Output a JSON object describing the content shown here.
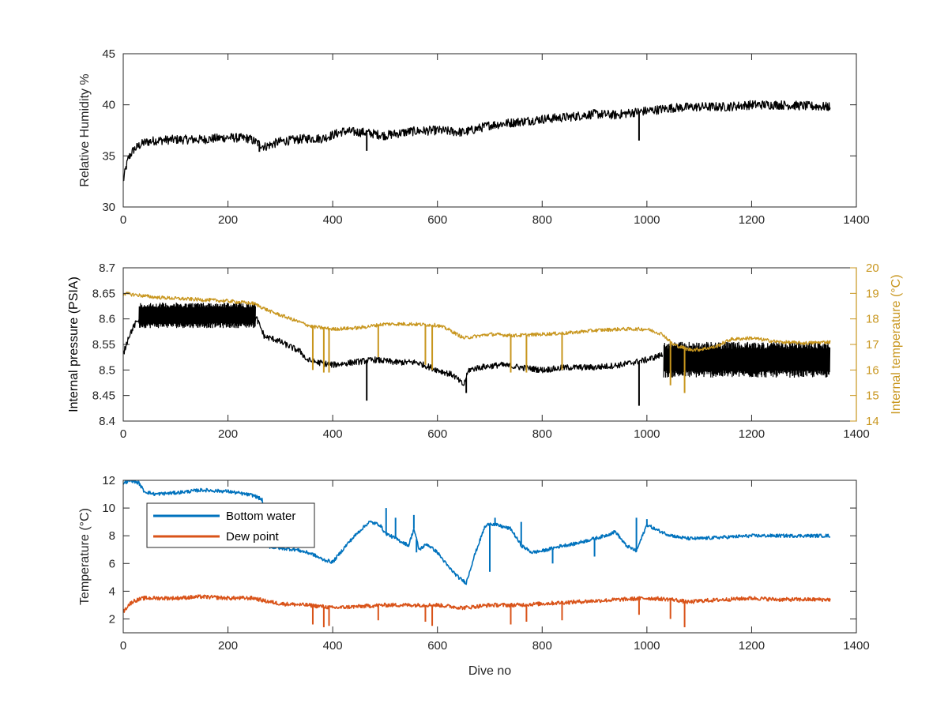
{
  "colors": {
    "axis": "#262626",
    "black_series": "#000000",
    "temp_right_axis": "#c8961e",
    "bottom_water": "#0072bd",
    "dew_point": "#d95319"
  },
  "chart_data": [
    {
      "id": "humidity",
      "type": "line",
      "xlabel": "",
      "ylabel": "Relative Humidity %",
      "xlim": [
        0,
        1400
      ],
      "ylim": [
        30,
        45
      ],
      "xticks": [
        "0",
        "200",
        "400",
        "600",
        "800",
        "1000",
        "1200",
        "1400"
      ],
      "yticks": [
        "30",
        "35",
        "40",
        "45"
      ],
      "series": [
        {
          "color": "#000000",
          "noise": 0.45,
          "x": [
            0,
            5,
            10,
            20,
            30,
            40,
            60,
            100,
            150,
            200,
            240,
            255,
            270,
            300,
            350,
            380,
            420,
            460,
            500,
            550,
            600,
            650,
            700,
            750,
            800,
            850,
            900,
            940,
            980,
            1000,
            1050,
            1100,
            1150,
            1200,
            1250,
            1300,
            1350
          ],
          "y": [
            32.5,
            33.8,
            34.8,
            35.6,
            36.0,
            36.3,
            36.5,
            36.6,
            36.6,
            36.8,
            36.7,
            36.3,
            35.9,
            36.4,
            36.7,
            36.7,
            37.4,
            37.3,
            37.0,
            37.4,
            37.5,
            37.3,
            38.0,
            38.3,
            38.6,
            38.8,
            39.1,
            39.0,
            39.3,
            39.4,
            39.7,
            39.8,
            39.8,
            40.0,
            40.0,
            39.9,
            39.8
          ]
        }
      ],
      "spikes": [
        {
          "x": 465,
          "y": 35.5
        },
        {
          "x": 985,
          "y": 36.5
        },
        {
          "x": 260,
          "y": 35.4
        }
      ]
    },
    {
      "id": "pressure",
      "type": "line",
      "xlabel": "",
      "ylabel": "Internal pressure (PSIA)",
      "ylabel_right": "Internal temperature (°C)",
      "xlim": [
        0,
        1400
      ],
      "ylim": [
        8.4,
        8.7
      ],
      "ylim_right": [
        14,
        20
      ],
      "xticks": [
        "0",
        "200",
        "400",
        "600",
        "800",
        "1000",
        "1200",
        "1400"
      ],
      "yticks": [
        "8.4",
        "8.45",
        "8.5",
        "8.55",
        "8.6",
        "8.65",
        "8.7"
      ],
      "yticks_right": [
        "14",
        "15",
        "16",
        "17",
        "18",
        "19",
        "20"
      ],
      "series": [
        {
          "axis": "left",
          "color": "#000000",
          "noise": 0.006,
          "x": [
            0,
            10,
            20,
            30,
            255,
            270,
            290,
            320,
            340,
            350,
            370,
            400,
            440,
            480,
            520,
            560,
            600,
            630,
            650,
            660,
            680,
            720,
            760,
            800,
            850,
            900,
            950,
            1000,
            1030
          ],
          "y": [
            8.53,
            8.565,
            8.585,
            8.6,
            8.6,
            8.565,
            8.56,
            8.545,
            8.535,
            8.52,
            8.515,
            8.51,
            8.515,
            8.52,
            8.515,
            8.515,
            8.5,
            8.49,
            8.47,
            8.5,
            8.505,
            8.51,
            8.505,
            8.5,
            8.505,
            8.505,
            8.51,
            8.52,
            8.53
          ]
        },
        {
          "axis": "right",
          "color": "#c8961e",
          "noise": 0.07,
          "x": [
            0,
            20,
            60,
            100,
            200,
            250,
            280,
            320,
            360,
            400,
            450,
            500,
            550,
            600,
            620,
            650,
            700,
            750,
            800,
            850,
            900,
            950,
            1000,
            1030,
            1050,
            1080,
            1100,
            1130,
            1160,
            1200,
            1250,
            1300,
            1350
          ],
          "y": [
            19.0,
            18.95,
            18.85,
            18.8,
            18.7,
            18.6,
            18.3,
            18.0,
            17.7,
            17.6,
            17.65,
            17.8,
            17.8,
            17.75,
            17.6,
            17.25,
            17.4,
            17.35,
            17.4,
            17.45,
            17.55,
            17.6,
            17.6,
            17.4,
            17.0,
            16.8,
            16.8,
            16.9,
            17.2,
            17.25,
            17.1,
            17.05,
            17.1
          ]
        }
      ],
      "band": {
        "axis": "left",
        "color": "#000000",
        "segments": [
          {
            "x0": 30,
            "x1": 252,
            "lo": 8.582,
            "hi": 8.632
          },
          {
            "x0": 1032,
            "x1": 1350,
            "lo": 8.485,
            "hi": 8.555
          }
        ]
      },
      "spikes": [
        {
          "axis": "left",
          "x": 465,
          "y": 8.44
        },
        {
          "axis": "left",
          "x": 985,
          "y": 8.43
        },
        {
          "axis": "left",
          "x": 655,
          "y": 8.455
        },
        {
          "axis": "right",
          "x": 362,
          "y": 16.0
        },
        {
          "axis": "right",
          "x": 383,
          "y": 15.9
        },
        {
          "axis": "right",
          "x": 393,
          "y": 15.9
        },
        {
          "axis": "right",
          "x": 487,
          "y": 16.5
        },
        {
          "axis": "right",
          "x": 577,
          "y": 16.2
        },
        {
          "axis": "right",
          "x": 590,
          "y": 16.0
        },
        {
          "axis": "right",
          "x": 740,
          "y": 15.9
        },
        {
          "axis": "right",
          "x": 770,
          "y": 15.9
        },
        {
          "axis": "right",
          "x": 838,
          "y": 16.0
        },
        {
          "axis": "right",
          "x": 1045,
          "y": 15.4
        },
        {
          "axis": "right",
          "x": 1072,
          "y": 15.1
        }
      ]
    },
    {
      "id": "temperature",
      "type": "line",
      "xlabel": "Dive no",
      "ylabel": "Temperature (°C)",
      "xlim": [
        0,
        1400
      ],
      "ylim": [
        1,
        12
      ],
      "xticks": [
        "0",
        "200",
        "400",
        "600",
        "800",
        "1000",
        "1200",
        "1400"
      ],
      "yticks": [
        "2",
        "4",
        "6",
        "8",
        "10",
        "12"
      ],
      "legend": {
        "location": "top-left",
        "entries": [
          "Bottom water",
          "Dew point"
        ]
      },
      "series": [
        {
          "name": "Bottom water",
          "color": "#0072bd",
          "noise": 0.12,
          "x": [
            0,
            15,
            30,
            40,
            60,
            100,
            150,
            200,
            250,
            265,
            280,
            300,
            330,
            360,
            380,
            400,
            430,
            450,
            470,
            490,
            500,
            510,
            530,
            545,
            555,
            565,
            580,
            600,
            620,
            640,
            655,
            670,
            690,
            700,
            720,
            740,
            760,
            780,
            800,
            820,
            840,
            860,
            880,
            900,
            920,
            940,
            960,
            980,
            1000,
            1020,
            1040,
            1060,
            1080,
            1100,
            1150,
            1200,
            1250,
            1300,
            1350
          ],
          "y": [
            11.8,
            12.0,
            11.8,
            11.2,
            11.0,
            11.1,
            11.3,
            11.2,
            10.9,
            10.6,
            7.2,
            7.1,
            7.0,
            6.7,
            6.3,
            6.1,
            7.5,
            8.3,
            9.0,
            8.8,
            8.2,
            8.0,
            7.6,
            7.3,
            8.5,
            7.0,
            7.4,
            6.8,
            5.8,
            5.0,
            4.6,
            6.5,
            8.6,
            8.9,
            8.7,
            8.5,
            7.3,
            6.8,
            6.9,
            7.1,
            7.3,
            7.4,
            7.6,
            7.8,
            8.0,
            8.3,
            7.3,
            6.9,
            8.8,
            8.4,
            8.1,
            7.9,
            7.8,
            7.8,
            7.9,
            8.0,
            8.0,
            8.0,
            8.0
          ]
        },
        {
          "name": "Dew point",
          "color": "#d95319",
          "noise": 0.14,
          "x": [
            0,
            10,
            20,
            40,
            100,
            150,
            200,
            250,
            270,
            300,
            350,
            380,
            400,
            450,
            500,
            550,
            600,
            650,
            700,
            750,
            800,
            850,
            900,
            950,
            1000,
            1050,
            1080,
            1100,
            1150,
            1200,
            1250,
            1300,
            1350
          ],
          "y": [
            2.5,
            3.0,
            3.3,
            3.5,
            3.5,
            3.6,
            3.5,
            3.5,
            3.3,
            3.1,
            3.0,
            2.9,
            2.8,
            2.9,
            3.0,
            3.0,
            3.0,
            2.8,
            3.0,
            3.0,
            3.1,
            3.2,
            3.3,
            3.4,
            3.5,
            3.4,
            3.2,
            3.3,
            3.4,
            3.5,
            3.4,
            3.4,
            3.4
          ]
        }
      ],
      "spikes": [
        {
          "series": "Bottom water",
          "x": 555,
          "y": 9.5
        },
        {
          "series": "Bottom water",
          "x": 560,
          "y": 6.8
        },
        {
          "series": "Bottom water",
          "x": 520,
          "y": 9.3
        },
        {
          "series": "Bottom water",
          "x": 700,
          "y": 5.4
        },
        {
          "series": "Bottom water",
          "x": 710,
          "y": 9.3
        },
        {
          "series": "Bottom water",
          "x": 760,
          "y": 9.0
        },
        {
          "series": "Bottom water",
          "x": 820,
          "y": 6.0
        },
        {
          "series": "Bottom water",
          "x": 900,
          "y": 6.5
        },
        {
          "series": "Bottom water",
          "x": 980,
          "y": 9.3
        },
        {
          "series": "Bottom water",
          "x": 1000,
          "y": 9.2
        },
        {
          "series": "Bottom water",
          "x": 502,
          "y": 10.0
        },
        {
          "series": "Dew point",
          "x": 362,
          "y": 1.6
        },
        {
          "series": "Dew point",
          "x": 383,
          "y": 1.4
        },
        {
          "series": "Dew point",
          "x": 393,
          "y": 1.5
        },
        {
          "series": "Dew point",
          "x": 487,
          "y": 1.9
        },
        {
          "series": "Dew point",
          "x": 577,
          "y": 1.8
        },
        {
          "series": "Dew point",
          "x": 590,
          "y": 1.5
        },
        {
          "series": "Dew point",
          "x": 740,
          "y": 1.6
        },
        {
          "series": "Dew point",
          "x": 770,
          "y": 1.8
        },
        {
          "series": "Dew point",
          "x": 838,
          "y": 1.9
        },
        {
          "series": "Dew point",
          "x": 985,
          "y": 2.3
        },
        {
          "series": "Dew point",
          "x": 1045,
          "y": 2.0
        },
        {
          "series": "Dew point",
          "x": 1072,
          "y": 1.4
        }
      ]
    }
  ]
}
